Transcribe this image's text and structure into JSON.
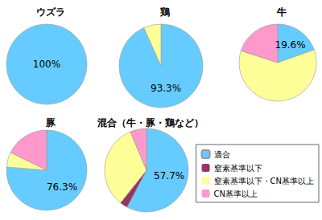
{
  "chart_data": [
    {
      "type": "pie",
      "title": "ウズラ",
      "categories": [
        "適合",
        "窒素基準以下",
        "窒素基準以下・CN基準以上",
        "CN基準以上"
      ],
      "values": [
        100,
        0,
        0,
        0
      ],
      "value_labels": [
        "100%",
        null,
        null,
        null
      ],
      "colors": [
        "#66ccff",
        "#993366",
        "#ffff99",
        "#ff99cc"
      ]
    },
    {
      "type": "pie",
      "title": "鶏",
      "categories": [
        "適合",
        "窒素基準以下",
        "窒素基準以下・CN基準以上",
        "CN基準以上"
      ],
      "values": [
        93.3,
        0,
        6.7,
        0
      ],
      "value_labels": [
        "93.3%",
        null,
        null,
        null
      ],
      "colors": [
        "#66ccff",
        "#993366",
        "#ffff99",
        "#ff99cc"
      ]
    },
    {
      "type": "pie",
      "title": "牛",
      "categories": [
        "適合",
        "窒素基準以下",
        "窒素基準以下・CN基準以上",
        "CN基準以上"
      ],
      "values": [
        19.6,
        0,
        60.4,
        20.0
      ],
      "value_labels": [
        "19.6%",
        null,
        null,
        null
      ],
      "colors": [
        "#66ccff",
        "#993366",
        "#ffff99",
        "#ff99cc"
      ]
    },
    {
      "type": "pie",
      "title": "豚",
      "categories": [
        "適合",
        "窒素基準以下",
        "窒素基準以下・CN基準以上",
        "CN基準以上"
      ],
      "values": [
        76.3,
        0,
        6.0,
        17.7
      ],
      "value_labels": [
        "76.3%",
        null,
        null,
        null
      ],
      "colors": [
        "#66ccff",
        "#993366",
        "#ffff99",
        "#ff99cc"
      ]
    },
    {
      "type": "pie",
      "title": "混合（牛・豚・鶏など）",
      "categories": [
        "適合",
        "窒素基準以下",
        "窒素基準以下・CN基準以上",
        "CN基準以上"
      ],
      "values": [
        57.7,
        3.0,
        33.0,
        6.3
      ],
      "value_labels": [
        "57.7%",
        null,
        null,
        null
      ],
      "colors": [
        "#66ccff",
        "#993366",
        "#ffff99",
        "#ff99cc"
      ],
      "legend": "bottom-right"
    }
  ]
}
